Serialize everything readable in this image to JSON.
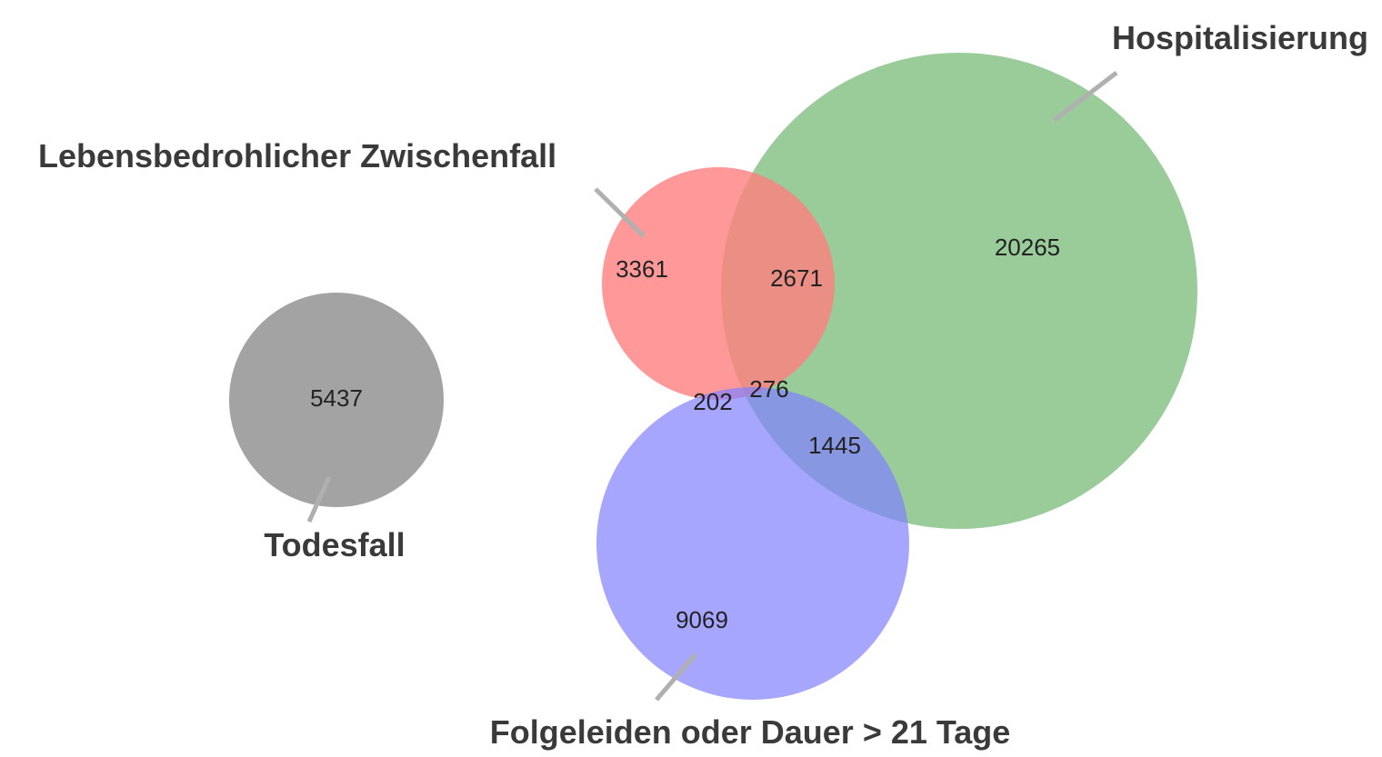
{
  "sets": [
    {
      "label": "Hospitalisierung",
      "color": "#7fbf7f"
    },
    {
      "label": "Lebensbedrohlicher Zwischenfall",
      "color": "#ff7f7f"
    },
    {
      "label": "Todesfall",
      "color": "#8c8c8c"
    },
    {
      "label": "Folgeleiden oder Dauer > 21 Tage",
      "color": "#8080ff"
    }
  ],
  "regions": [
    {
      "label": "20265"
    },
    {
      "label": "3361"
    },
    {
      "label": "2671"
    },
    {
      "label": "5437"
    },
    {
      "label": "202"
    },
    {
      "label": "276"
    },
    {
      "label": "1445"
    },
    {
      "label": "9069"
    }
  ]
}
